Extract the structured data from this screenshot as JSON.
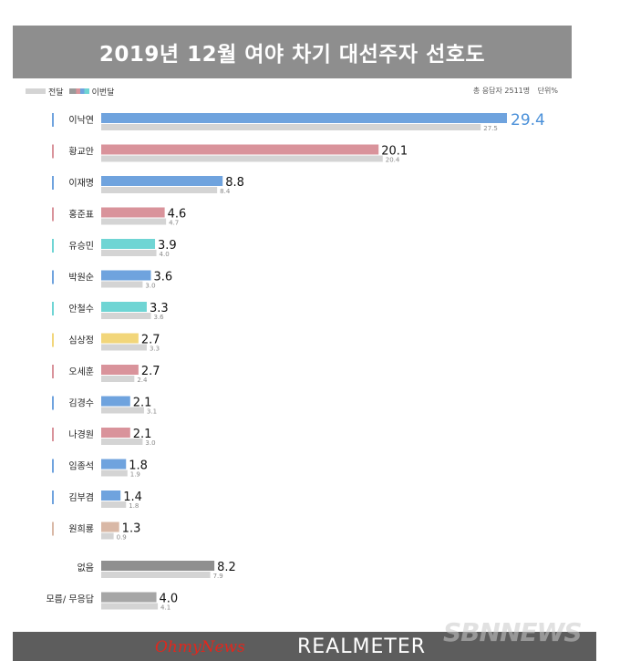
{
  "chart_data": {
    "type": "bar",
    "title": "2019년 12월 여야 차기 대선주자 선호도",
    "legend": {
      "prev": "전달",
      "current": "이번달"
    },
    "note": {
      "sample": "총 응답자 2511명",
      "unit": "단위%"
    },
    "categories": [
      "이낙연",
      "황교안",
      "이재명",
      "홍준표",
      "유승민",
      "박원순",
      "안철수",
      "심상정",
      "오세훈",
      "김경수",
      "나경원",
      "임종석",
      "김부겸",
      "원희룡",
      "없음",
      "모름/ 무응답"
    ],
    "series": [
      {
        "name": "이번달",
        "values": [
          29.4,
          20.1,
          8.8,
          4.6,
          3.9,
          3.6,
          3.3,
          2.7,
          2.7,
          2.1,
          2.1,
          1.8,
          1.4,
          1.3,
          8.2,
          4.0
        ]
      },
      {
        "name": "전달",
        "values": [
          27.5,
          20.4,
          8.4,
          4.7,
          4.0,
          3.0,
          3.6,
          3.3,
          2.4,
          3.1,
          3.0,
          1.9,
          1.8,
          0.9,
          7.9,
          4.1
        ]
      }
    ],
    "colors": [
      "#6fa3de",
      "#d9939b",
      "#6fa3de",
      "#d9939b",
      "#6fd5d4",
      "#6fa3de",
      "#6fd5d4",
      "#f2d67a",
      "#d9939b",
      "#6fa3de",
      "#d9939b",
      "#6fa3de",
      "#6fa3de",
      "#d9b8a6",
      "#8f8f8f",
      "#a6a6a6"
    ],
    "marker_colors": [
      "#6fa3de",
      "#d9939b",
      "#6fa3de",
      "#d9939b",
      "#6fd5d4",
      "#6fa3de",
      "#6fd5d4",
      "#f2d67a",
      "#d9939b",
      "#6fa3de",
      "#d9939b",
      "#6fa3de",
      "#6fa3de",
      "#d9b8a6",
      "",
      ""
    ],
    "prev_color": "#d4d4d4",
    "highlight_color": "#4a90d9",
    "xlim": [
      0,
      29.4
    ]
  },
  "footer": {
    "left_logo": "OhmyNews",
    "right_logo": "REALMETER"
  },
  "watermark": "SBNNEWS"
}
